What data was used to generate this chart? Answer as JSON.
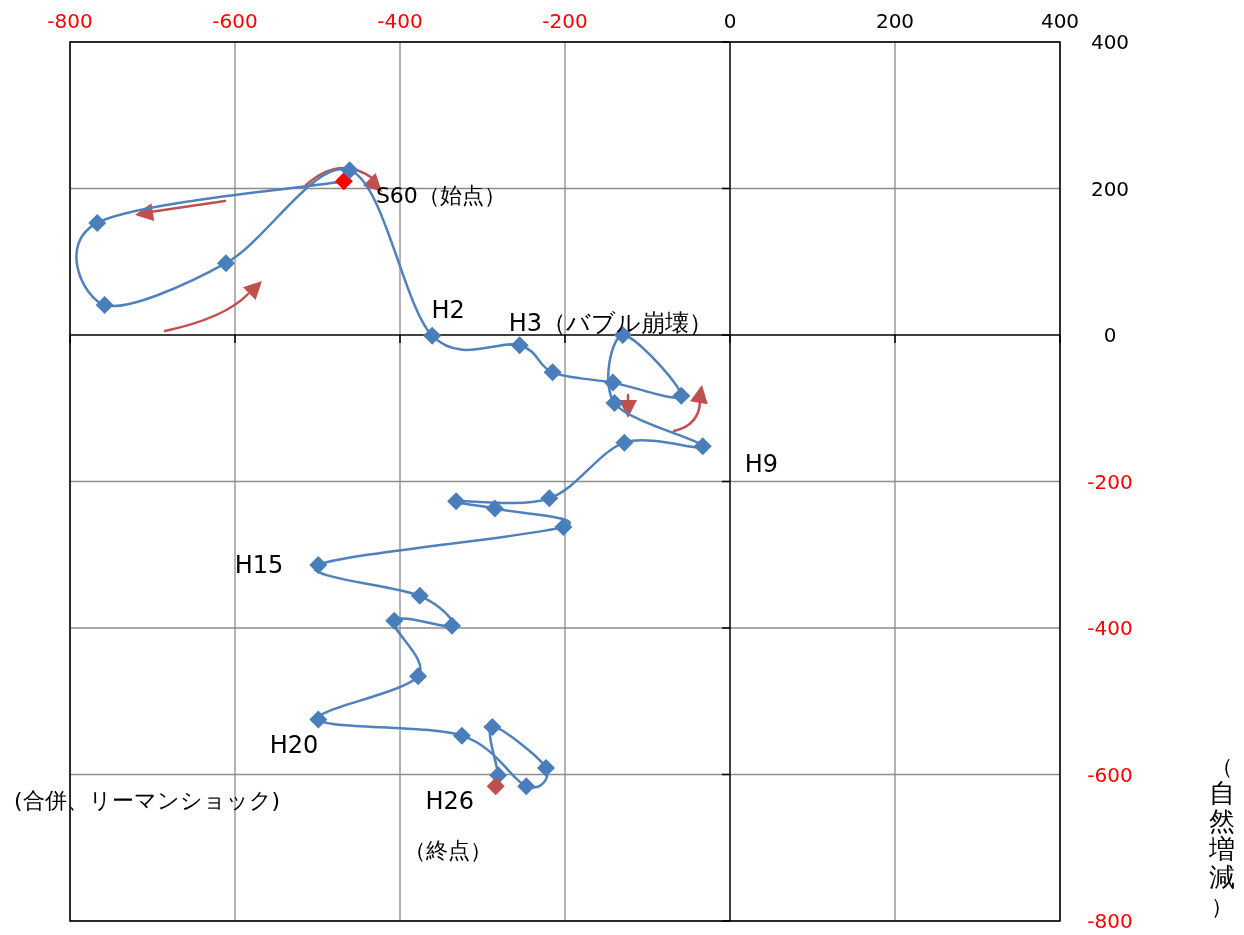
{
  "chart_data": {
    "type": "scatter",
    "ylabel": "（自然増減）",
    "x": [
      -468,
      -767,
      -758,
      -611,
      -461,
      -361,
      -255,
      -215,
      -142,
      -59,
      -130,
      -140,
      -33,
      -128,
      -219,
      -332,
      -285,
      -202,
      -499,
      -376,
      -337,
      -407,
      -378,
      -499,
      -325,
      -247,
      -223,
      -288,
      -281,
      -284
    ],
    "series": [
      {
        "color": "#4f81bd",
        "type": "line",
        "values": [
          210,
          153,
          41,
          98,
          225,
          -1,
          -14,
          -51,
          -65,
          -83,
          0,
          -93,
          -152,
          -147,
          -223,
          -227,
          -237,
          -262,
          -314,
          -356,
          -397,
          -390,
          -466,
          -525,
          -547,
          -616,
          -591,
          -535,
          -601,
          -616
        ],
        "colors": [
          "#ff0000",
          "#4a7ebb",
          "#4a7ebb",
          "#4a7ebb",
          "#4a7ebb",
          "#4a7ebb",
          "#4a7ebb",
          "#4a7ebb",
          "#4a7ebb",
          "#4a7ebb",
          "#4a7ebb",
          "#4a7ebb",
          "#4a7ebb",
          "#4a7ebb",
          "#4a7ebb",
          "#4a7ebb",
          "#4a7ebb",
          "#4a7ebb",
          "#4a7ebb",
          "#4a7ebb",
          "#4a7ebb",
          "#4a7ebb",
          "#4a7ebb",
          "#4a7ebb",
          "#4a7ebb",
          "#4a7ebb",
          "#4a7ebb",
          "#4a7ebb",
          "#4a7ebb",
          "#c0504d"
        ]
      }
    ],
    "xlim": [
      -800,
      400
    ],
    "xticks": [
      -800,
      -600,
      -400,
      -200,
      0,
      200,
      400
    ],
    "ylim": [
      -800,
      400
    ],
    "yticks": [
      -800,
      -600,
      -400,
      -200,
      0,
      200,
      400
    ],
    "grid": true,
    "marker": "diamond",
    "line_style": "solid",
    "annotations": [
      {
        "text": "S60（始点）",
        "x": -468,
        "y": 210
      },
      {
        "text": "H2",
        "x": -361,
        "y": -1
      },
      {
        "text": "H3（バブル崩壊）",
        "x": -255,
        "y": -14
      },
      {
        "text": "H9",
        "x": -33,
        "y": -152
      },
      {
        "text": "H15",
        "x": -499,
        "y": -314
      },
      {
        "text": "H20",
        "x": -499,
        "y": -525
      },
      "(合併、リーマンショック)",
      {
        "text": "H26",
        "x": -284,
        "y": -616
      },
      "（終点）"
    ]
  }
}
